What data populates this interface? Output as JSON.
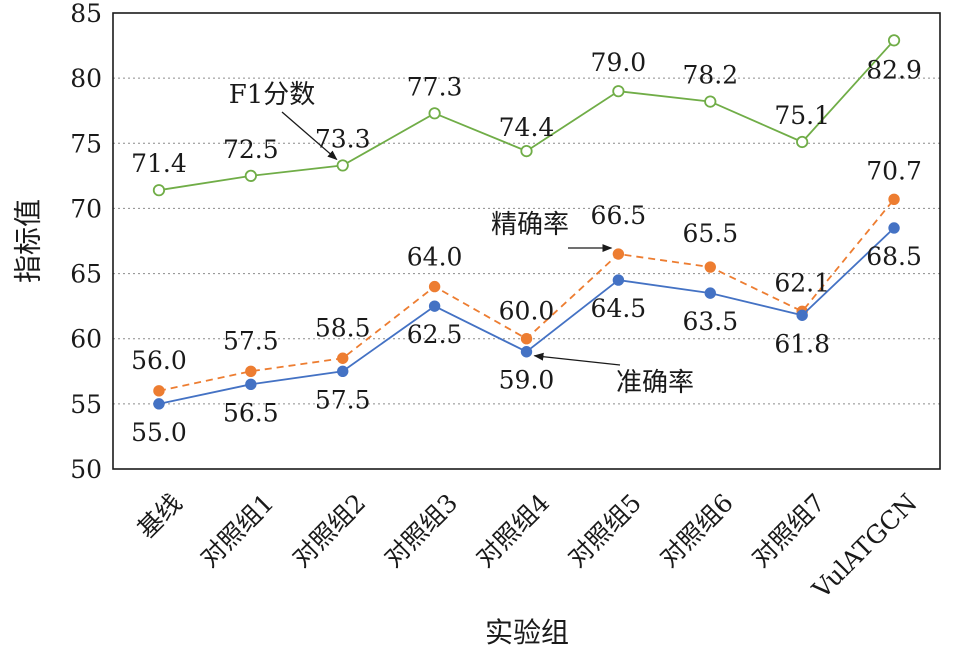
{
  "chart_data": {
    "type": "line",
    "xlabel": "实验组",
    "ylabel": "指标值",
    "ylim": [
      50,
      85
    ],
    "yticks": [
      50,
      55,
      60,
      65,
      70,
      75,
      80,
      85
    ],
    "grid": true,
    "categories": [
      "基线",
      "对照组1",
      "对照组2",
      "对照组3",
      "对照组4",
      "对照组5",
      "对照组6",
      "对照组7",
      "VulATGCN"
    ],
    "series": [
      {
        "name": "F1分数",
        "values": [
          71.4,
          72.5,
          73.3,
          77.3,
          74.4,
          79.0,
          78.2,
          75.1,
          82.9
        ],
        "color": "#70ad47",
        "marker": "hollow-circle",
        "line": "solid"
      },
      {
        "name": "精确率",
        "values": [
          56.0,
          57.5,
          58.5,
          64.0,
          60.0,
          66.5,
          65.5,
          62.1,
          70.7
        ],
        "color": "#ed7d31",
        "marker": "filled-circle",
        "line": "dashed"
      },
      {
        "name": "准确率",
        "values": [
          55.0,
          56.5,
          57.5,
          62.5,
          59.0,
          64.5,
          63.5,
          61.8,
          68.5
        ],
        "color": "#4472c4",
        "marker": "filled-circle",
        "line": "solid"
      }
    ],
    "annotations": [
      {
        "text": "F1分数",
        "series": "F1分数",
        "point": 2
      },
      {
        "text": "精确率",
        "series": "精确率",
        "point": 5
      },
      {
        "text": "准确率",
        "series": "准确率",
        "point": 4
      }
    ]
  }
}
